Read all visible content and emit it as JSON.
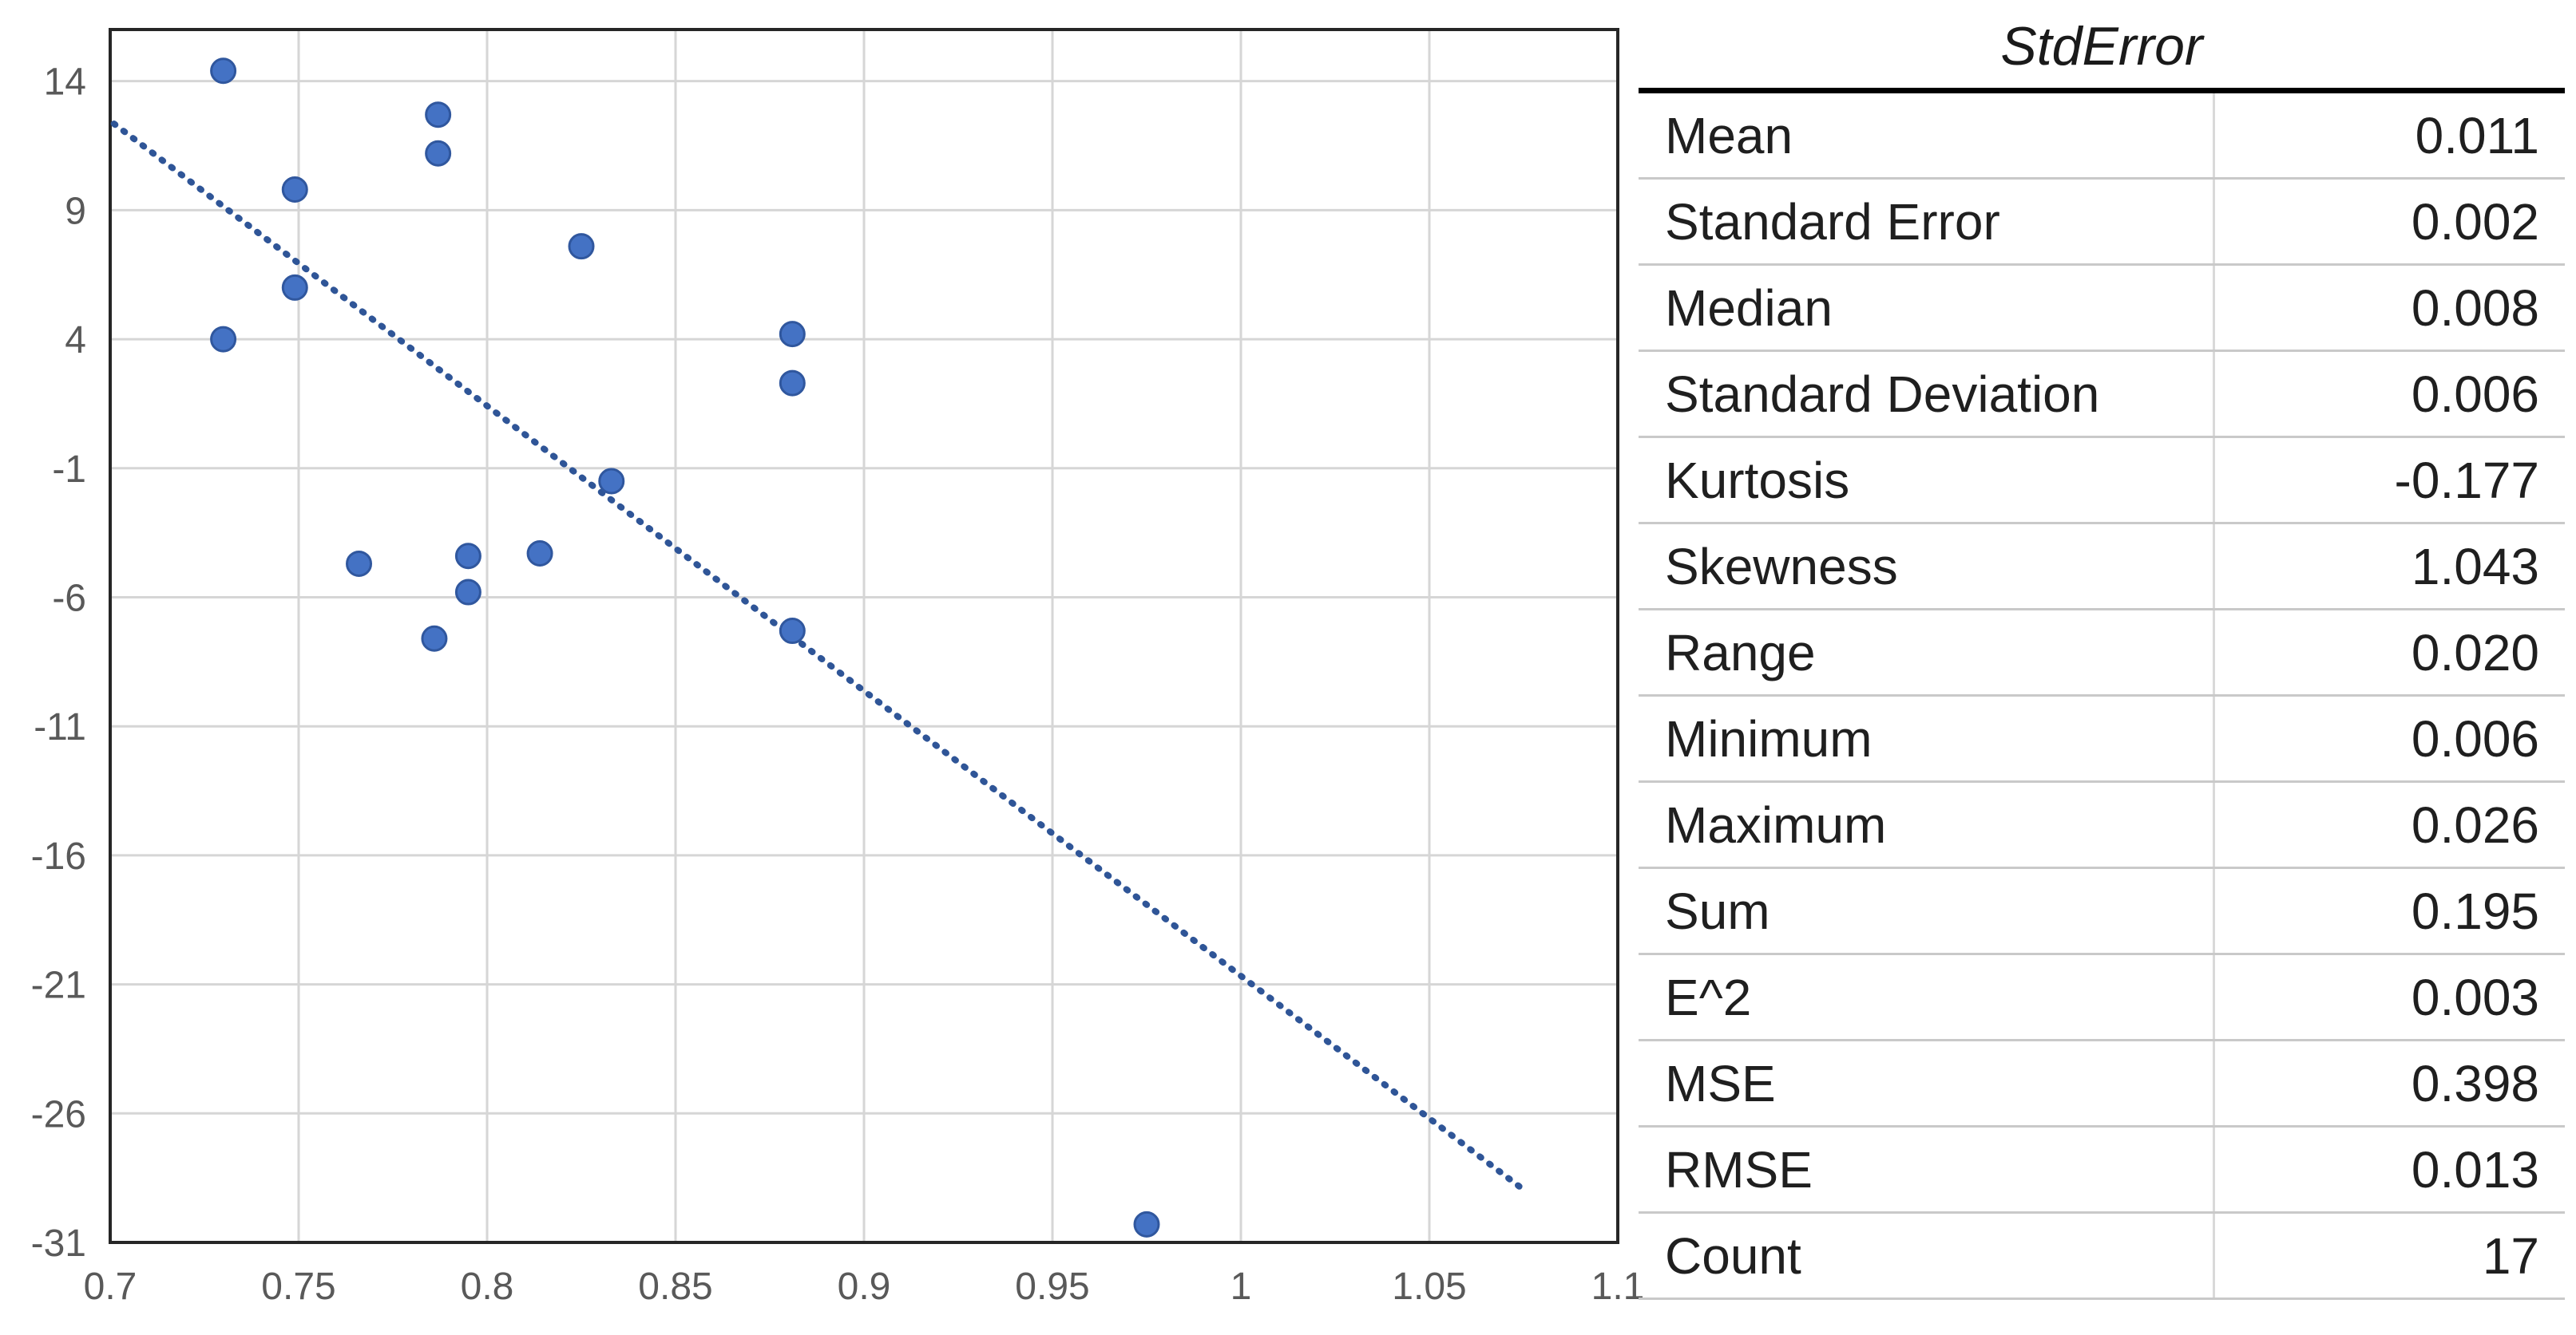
{
  "chart_data": {
    "type": "scatter",
    "title": "",
    "xlabel": "",
    "ylabel": "",
    "x_axis": {
      "min": 0.7,
      "max": 1.1,
      "gridlines": [
        0.75,
        0.8,
        0.85,
        0.9,
        0.95,
        1.0,
        1.05
      ],
      "ticks": [
        {
          "v": 0.7,
          "label": "0.7"
        },
        {
          "v": 0.75,
          "label": "0.75"
        },
        {
          "v": 0.8,
          "label": "0.8"
        },
        {
          "v": 0.85,
          "label": "0.85"
        },
        {
          "v": 0.9,
          "label": "0.9"
        },
        {
          "v": 0.95,
          "label": "0.95"
        },
        {
          "v": 1.0,
          "label": "1"
        },
        {
          "v": 1.05,
          "label": "1.05"
        },
        {
          "v": 1.1,
          "label": "1.1"
        }
      ]
    },
    "y_axis": {
      "min": -31,
      "max": 16,
      "gridlines": [
        14,
        9,
        4,
        -1,
        -6,
        -11,
        -16,
        -21,
        -26
      ],
      "ticks": [
        {
          "v": 14,
          "label": "14"
        },
        {
          "v": 9,
          "label": "9"
        },
        {
          "v": 4,
          "label": "4"
        },
        {
          "v": -1,
          "label": "-1"
        },
        {
          "v": -6,
          "label": "-6"
        },
        {
          "v": -11,
          "label": "-11"
        },
        {
          "v": -16,
          "label": "-16"
        },
        {
          "v": -21,
          "label": "-21"
        },
        {
          "v": -26,
          "label": "-26"
        },
        {
          "v": -31,
          "label": "-31"
        }
      ]
    },
    "points": [
      {
        "x": 0.73,
        "y": 14.4
      },
      {
        "x": 0.787,
        "y": 12.7
      },
      {
        "x": 0.787,
        "y": 11.2
      },
      {
        "x": 0.749,
        "y": 9.8
      },
      {
        "x": 0.825,
        "y": 7.6
      },
      {
        "x": 0.749,
        "y": 6.0
      },
      {
        "x": 0.73,
        "y": 4.0
      },
      {
        "x": 0.881,
        "y": 4.2
      },
      {
        "x": 0.881,
        "y": 2.3
      },
      {
        "x": 0.833,
        "y": -1.5
      },
      {
        "x": 0.766,
        "y": -4.7
      },
      {
        "x": 0.795,
        "y": -4.4
      },
      {
        "x": 0.814,
        "y": -4.3
      },
      {
        "x": 0.795,
        "y": -5.8
      },
      {
        "x": 0.786,
        "y": -7.6
      },
      {
        "x": 0.881,
        "y": -7.3
      },
      {
        "x": 0.975,
        "y": -30.3
      }
    ],
    "trendline": {
      "style": "dotted",
      "x1": 0.701,
      "y1": 12.35,
      "x2": 1.0745,
      "y2": -28.9
    },
    "colors": {
      "marker": "#4472C4",
      "marker_edge": "#30579E",
      "trendline": "#2F5597",
      "gridline": "#D6D6D6",
      "axis_border": "#262626",
      "tick_label": "#595959"
    },
    "legend": "none",
    "grid": "on"
  },
  "stats_table": {
    "title": "StdError",
    "rows": [
      {
        "label": "Mean",
        "value": "0.011"
      },
      {
        "label": "Standard Error",
        "value": "0.002"
      },
      {
        "label": "Median",
        "value": "0.008"
      },
      {
        "label": "Standard Deviation",
        "value": "0.006"
      },
      {
        "label": "Kurtosis",
        "value": "-0.177"
      },
      {
        "label": "Skewness",
        "value": "1.043"
      },
      {
        "label": "Range",
        "value": "0.020"
      },
      {
        "label": "Minimum",
        "value": "0.006"
      },
      {
        "label": "Maximum",
        "value": "0.026"
      },
      {
        "label": "Sum",
        "value": "0.195"
      },
      {
        "label": "E^2",
        "value": "0.003"
      },
      {
        "label": "MSE",
        "value": "0.398"
      },
      {
        "label": "RMSE",
        "value": "0.013"
      },
      {
        "label": "Count",
        "value": "17"
      }
    ]
  }
}
